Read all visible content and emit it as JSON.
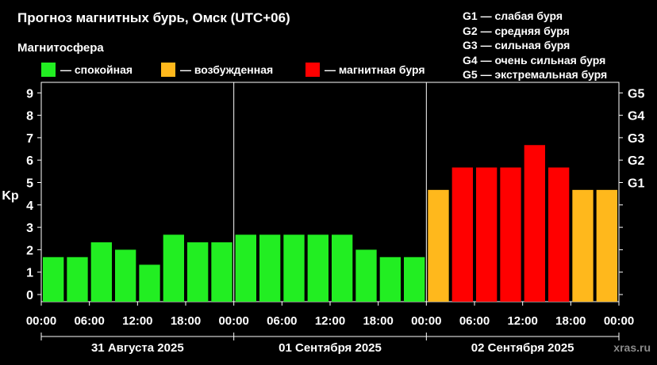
{
  "title": "Прогноз магнитных бурь, Омск (UTC+06)",
  "subtitle": "Магнитосфера",
  "legend": [
    {
      "label": "— спокойная",
      "color": "#22ee22"
    },
    {
      "label": "— возбужденная",
      "color": "#ffb81c"
    },
    {
      "label": "— магнитная буря",
      "color": "#ff0000"
    }
  ],
  "storm_levels": [
    "G1 — слабая буря",
    "G2 — средняя буря",
    "G3 — сильная буря",
    "G4 — очень сильная буря",
    "G5 — экстремальная буря"
  ],
  "watermark": "xras.ru",
  "colors": {
    "quiet": "#22ee22",
    "active": "#ffb81c",
    "storm": "#ff0000",
    "background": "#000000"
  },
  "chart_data": {
    "type": "bar",
    "ylabel": "Kp",
    "ylim": [
      0,
      9
    ],
    "yticks": [
      0,
      1,
      2,
      3,
      4,
      5,
      6,
      7,
      8,
      9
    ],
    "right_axis_ticks": [
      {
        "label": "G1",
        "y": 5
      },
      {
        "label": "G2",
        "y": 6
      },
      {
        "label": "G3",
        "y": 7
      },
      {
        "label": "G4",
        "y": 8
      },
      {
        "label": "G5",
        "y": 9
      }
    ],
    "xtick_labels": [
      "00:00",
      "06:00",
      "12:00",
      "18:00",
      "00:00",
      "06:00",
      "12:00",
      "18:00",
      "00:00",
      "06:00",
      "12:00",
      "18:00",
      "00:00"
    ],
    "days": [
      "31 Августа 2025",
      "01 Сентября 2025",
      "02 Сентября 2025"
    ],
    "interval_hours": 3,
    "values": [
      1.67,
      1.67,
      2.33,
      2.0,
      1.33,
      2.67,
      2.33,
      2.33,
      2.67,
      2.67,
      2.67,
      2.67,
      2.67,
      2.0,
      1.67,
      1.67,
      4.67,
      5.67,
      5.67,
      5.67,
      6.67,
      5.67,
      4.67,
      4.67
    ],
    "levels": [
      "quiet",
      "quiet",
      "quiet",
      "quiet",
      "quiet",
      "quiet",
      "quiet",
      "quiet",
      "quiet",
      "quiet",
      "quiet",
      "quiet",
      "quiet",
      "quiet",
      "quiet",
      "quiet",
      "active",
      "storm",
      "storm",
      "storm",
      "storm",
      "storm",
      "active",
      "active"
    ],
    "grid": false,
    "legend_position": "top-left"
  }
}
